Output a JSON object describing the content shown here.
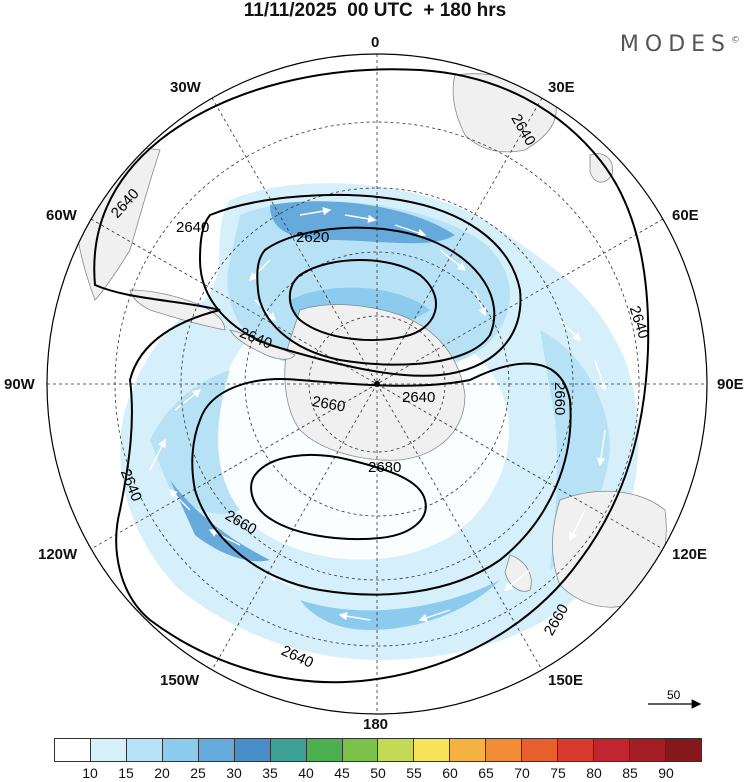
{
  "title": "11/11/2025  00 UTC  + 180 hrs",
  "brand": "MODES",
  "brand_mark": "©",
  "lon_labels": {
    "n0": "0",
    "n30e": "30E",
    "n60e": "60E",
    "n90e": "90E",
    "n120e": "120E",
    "n150e": "150E",
    "n180": "180",
    "n150w": "150W",
    "n120w": "120W",
    "n90w": "90W",
    "n60w": "60W",
    "n30w": "30W"
  },
  "contour_labels": {
    "c1": "2640",
    "c2": "2640",
    "c3": "2620",
    "c4": "2640",
    "c5": "2640",
    "c6": "2640",
    "c7": "2660",
    "c8": "2660",
    "c9": "2680",
    "c10": "2660",
    "c11": "2640",
    "c12": "2640",
    "c13": "2640",
    "c14": "2660"
  },
  "reference_vector": "50",
  "colorbar": {
    "labels": [
      "10",
      "15",
      "20",
      "25",
      "30",
      "35",
      "40",
      "45",
      "50",
      "55",
      "60",
      "65",
      "70",
      "75",
      "80",
      "85",
      "90"
    ],
    "colors": [
      "#ffffff",
      "#d6f0fb",
      "#b7e2f6",
      "#8ccaee",
      "#66aadc",
      "#4a8ec9",
      "#3ca096",
      "#4cb050",
      "#7cc24a",
      "#c2da55",
      "#f7e35a",
      "#f5b240",
      "#f08c33",
      "#e8602e",
      "#d93a2e",
      "#c02630",
      "#a41e25",
      "#86181c"
    ]
  },
  "colors": {
    "land": "#f0f0f0",
    "coast": "#888888",
    "contour": "#000000",
    "grid": "#333333"
  }
}
